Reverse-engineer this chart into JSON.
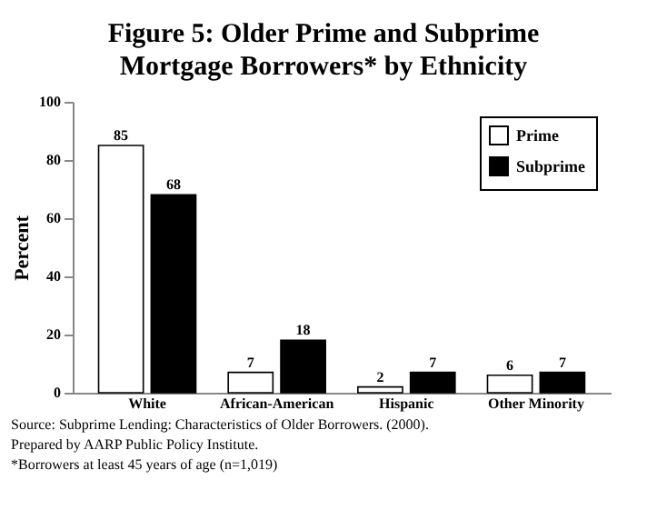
{
  "chart_data": {
    "type": "bar",
    "title": "Figure 5:  Older Prime and Subprime Mortgage Borrowers* by Ethnicity",
    "ylabel": "Percent",
    "categories": [
      "White",
      "African-American",
      "Hispanic",
      "Other Minority"
    ],
    "series": [
      {
        "name": "Prime",
        "color": "#ffffff",
        "values": [
          85,
          7,
          2,
          6
        ]
      },
      {
        "name": "Subprime",
        "color": "#000000",
        "values": [
          68,
          18,
          7,
          7
        ]
      }
    ],
    "ylim": [
      0,
      100
    ],
    "yticks": [
      0,
      20,
      40,
      60,
      80,
      100
    ],
    "data_labels": true,
    "legend": "top right",
    "grid": false,
    "annotations": [
      "Source: Subprime Lending: Characteristics of Older Borrowers. (2000).",
      "Prepared by AARP Public Policy Institute.",
      "*Borrowers at least 45 years of age (n=1,019)"
    ]
  }
}
